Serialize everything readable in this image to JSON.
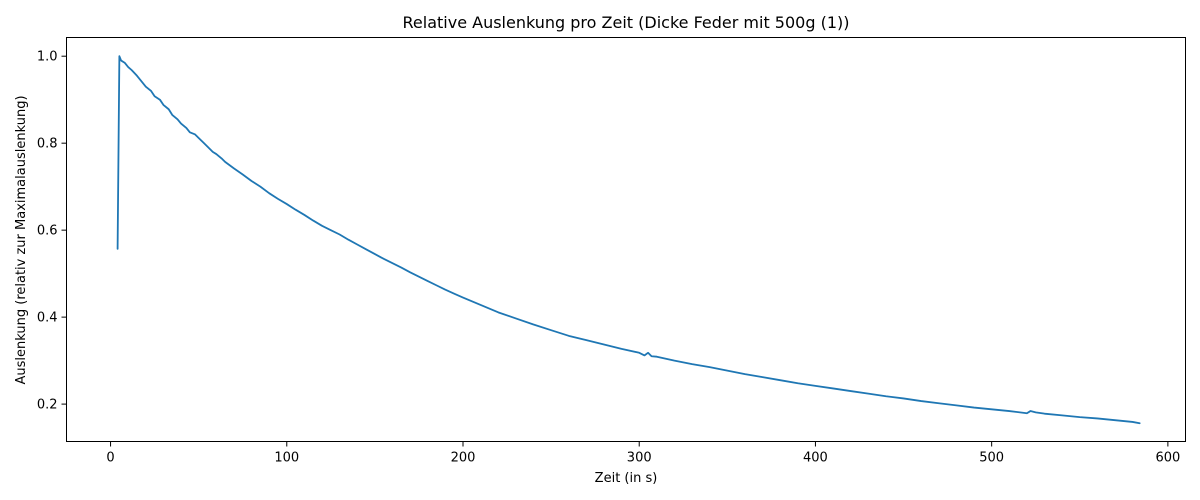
{
  "chart_data": {
    "type": "line",
    "title": "Relative Auslenkung pro Zeit (Dicke Feder mit 500g (1))",
    "xlabel": "Zeit (in s)",
    "ylabel": "Auslenkung (relativ zur Maximalauslenkung)",
    "xlim": [
      -25,
      610
    ],
    "ylim": [
      0.114,
      1.043
    ],
    "xticks": [
      0,
      100,
      200,
      300,
      400,
      500,
      600
    ],
    "xtick_labels": [
      "0",
      "100",
      "200",
      "300",
      "400",
      "500",
      "600"
    ],
    "yticks": [
      0.2,
      0.4,
      0.6,
      0.8,
      1.0
    ],
    "ytick_labels": [
      "0.2",
      "0.4",
      "0.6",
      "0.8",
      "1.0"
    ],
    "grid": false,
    "series": [
      {
        "name": "Auslenkung",
        "color": "#1f77b4",
        "x": [
          4,
          5,
          6,
          8,
          10,
          12,
          15,
          18,
          20,
          23,
          25,
          28,
          30,
          33,
          35,
          38,
          40,
          43,
          45,
          48,
          50,
          53,
          55,
          58,
          60,
          63,
          65,
          70,
          75,
          80,
          85,
          90,
          95,
          100,
          105,
          110,
          115,
          120,
          125,
          130,
          135,
          140,
          145,
          150,
          155,
          160,
          165,
          170,
          175,
          180,
          185,
          190,
          195,
          200,
          210,
          220,
          230,
          240,
          250,
          260,
          270,
          280,
          290,
          300,
          303,
          305,
          307,
          310,
          320,
          330,
          340,
          350,
          360,
          370,
          380,
          390,
          400,
          410,
          420,
          430,
          440,
          450,
          460,
          470,
          480,
          490,
          500,
          510,
          520,
          522,
          525,
          530,
          540,
          550,
          560,
          570,
          580,
          584
        ],
        "y": [
          0.557,
          1.0,
          0.99,
          0.985,
          0.975,
          0.968,
          0.955,
          0.94,
          0.93,
          0.92,
          0.908,
          0.9,
          0.888,
          0.878,
          0.865,
          0.855,
          0.845,
          0.835,
          0.825,
          0.82,
          0.812,
          0.8,
          0.792,
          0.78,
          0.775,
          0.765,
          0.757,
          0.742,
          0.728,
          0.713,
          0.7,
          0.685,
          0.672,
          0.66,
          0.647,
          0.635,
          0.622,
          0.61,
          0.6,
          0.59,
          0.578,
          0.567,
          0.556,
          0.545,
          0.534,
          0.524,
          0.514,
          0.503,
          0.493,
          0.483,
          0.473,
          0.463,
          0.454,
          0.445,
          0.428,
          0.411,
          0.397,
          0.383,
          0.37,
          0.357,
          0.347,
          0.337,
          0.327,
          0.318,
          0.312,
          0.318,
          0.31,
          0.309,
          0.3,
          0.292,
          0.285,
          0.277,
          0.269,
          0.262,
          0.255,
          0.248,
          0.242,
          0.236,
          0.23,
          0.224,
          0.218,
          0.213,
          0.207,
          0.202,
          0.197,
          0.192,
          0.188,
          0.184,
          0.179,
          0.184,
          0.181,
          0.178,
          0.174,
          0.17,
          0.167,
          0.163,
          0.159,
          0.156
        ]
      }
    ]
  }
}
